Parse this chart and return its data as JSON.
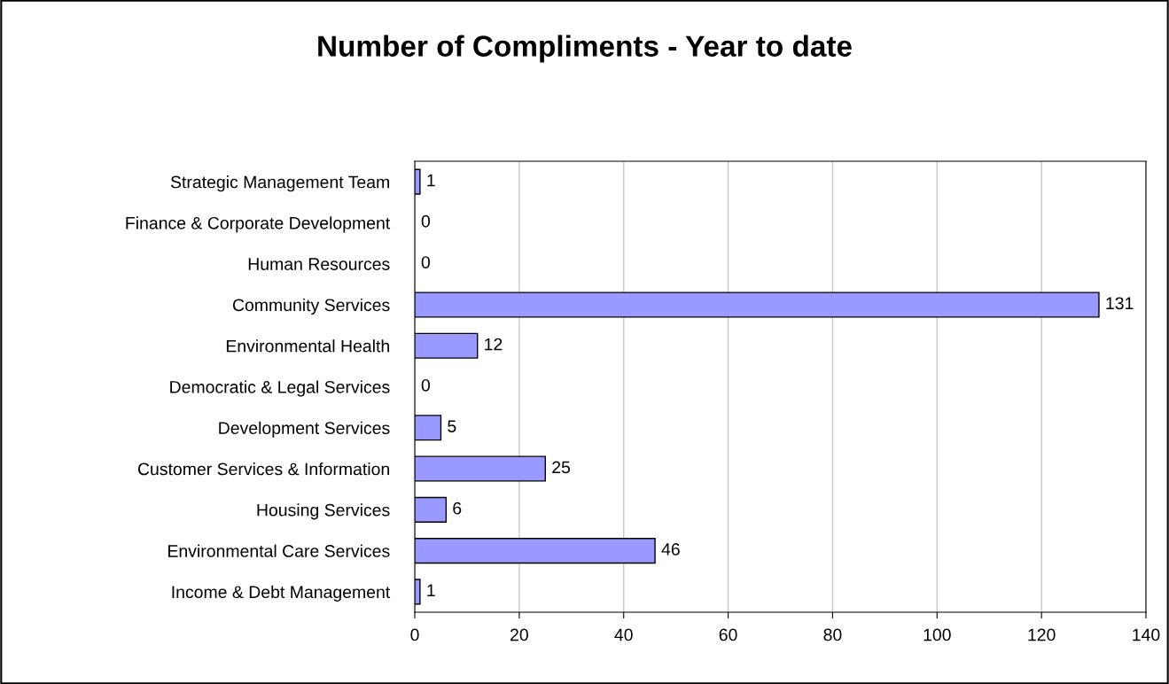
{
  "chart_data": {
    "type": "bar",
    "orientation": "horizontal",
    "title": "Number of Compliments - Year to date",
    "categories": [
      "Strategic Management Team",
      "Finance & Corporate Development",
      "Human Resources",
      "Community Services",
      "Environmental Health",
      "Democratic & Legal Services",
      "Development Services",
      "Customer Services & Information",
      "Housing Services",
      "Environmental Care Services",
      "Income & Debt Management"
    ],
    "values": [
      1,
      0,
      0,
      131,
      12,
      0,
      5,
      25,
      6,
      46,
      1
    ],
    "color": "#9999ff",
    "xlim": [
      0,
      140
    ],
    "xticks": [
      0,
      20,
      40,
      60,
      80,
      100,
      120,
      140
    ],
    "grid": "x",
    "data_labels": true,
    "legend": false
  }
}
